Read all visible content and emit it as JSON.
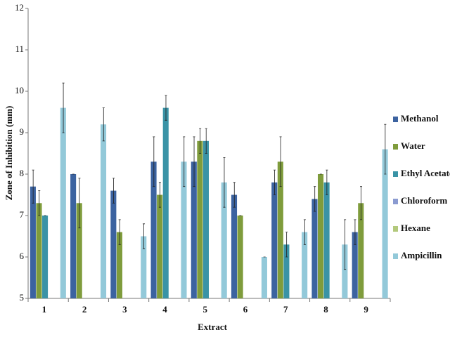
{
  "chart_data": {
    "type": "bar",
    "x_label": "Extract",
    "y_label": "Zone of Inhibition (mm)",
    "categories": [
      "1",
      "2",
      "3",
      "4",
      "5",
      "6",
      "7",
      "8",
      "9"
    ],
    "series": [
      {
        "name": "Methanol",
        "color": "#3c63a0",
        "values": [
          7.7,
          8.0,
          7.6,
          8.3,
          8.3,
          7.5,
          7.8,
          7.4,
          6.6
        ],
        "errors": [
          0.4,
          0,
          0.3,
          0.6,
          0.6,
          0.3,
          0.3,
          0.3,
          0.3
        ]
      },
      {
        "name": "Water",
        "color": "#7f9c3c",
        "values": [
          7.3,
          7.3,
          6.6,
          7.5,
          8.8,
          7.0,
          8.3,
          8.0,
          7.3
        ],
        "errors": [
          0.3,
          0.6,
          0.3,
          0.3,
          0.3,
          0,
          0.6,
          0,
          0.4
        ]
      },
      {
        "name": "Ethyl Acetate",
        "color": "#3a93a6",
        "values": [
          7.0,
          null,
          null,
          9.6,
          8.8,
          null,
          6.3,
          7.8,
          null
        ],
        "errors": [
          0,
          null,
          null,
          0.3,
          0.3,
          null,
          0.3,
          0.3,
          null
        ]
      },
      {
        "name": "Chloroform",
        "color": "#8b9bd1",
        "values": [
          null,
          null,
          null,
          null,
          null,
          null,
          null,
          null,
          null
        ],
        "errors": [
          null,
          null,
          null,
          null,
          null,
          null,
          null,
          null,
          null
        ]
      },
      {
        "name": "Hexane",
        "color": "#b3c97c",
        "values": [
          null,
          null,
          null,
          null,
          null,
          null,
          null,
          null,
          null
        ],
        "errors": [
          null,
          null,
          null,
          null,
          null,
          null,
          null,
          null,
          null
        ]
      },
      {
        "name": "Ampicillin",
        "color": "#93c9d9",
        "values": [
          9.6,
          9.2,
          6.5,
          8.3,
          7.8,
          6.0,
          6.6,
          6.3,
          8.6
        ],
        "errors": [
          0.6,
          0.4,
          0.3,
          0.6,
          0.6,
          0,
          0.3,
          0.6,
          0.6
        ]
      }
    ],
    "ylim": [
      5,
      12
    ],
    "yticks": [
      5,
      6,
      7,
      8,
      9,
      10,
      11,
      12
    ],
    "grid": false,
    "legend": "right"
  }
}
